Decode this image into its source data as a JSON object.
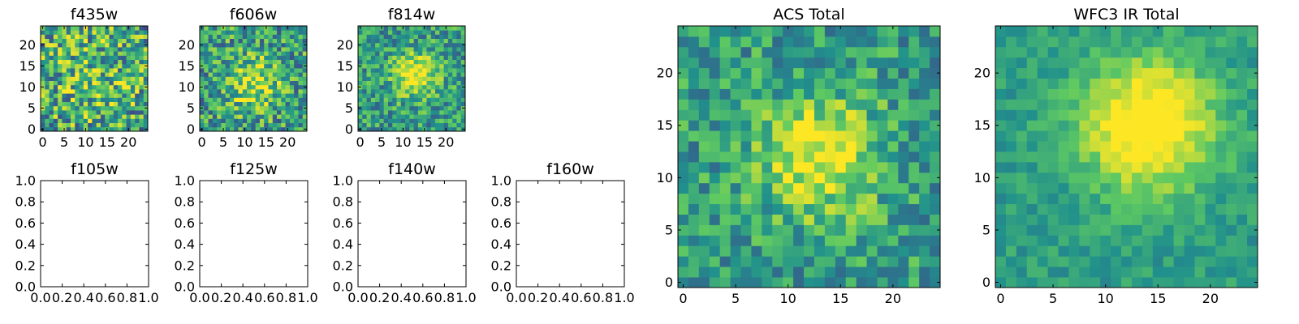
{
  "colormap": [
    "#440154",
    "#3b528b",
    "#21918c",
    "#5ec962",
    "#fde725"
  ],
  "chart_data": [
    {
      "type": "heatmap",
      "title": "f435w",
      "image_size": 25,
      "peak": [
        12,
        12
      ],
      "sigma": 9,
      "amplitude": 0.15,
      "noise": 0.42,
      "seed": 11,
      "xlim": [
        -0.5,
        24.5
      ],
      "ylim": [
        -0.5,
        24.5
      ],
      "xticks": [
        0,
        5,
        10,
        15,
        20
      ],
      "yticks": [
        0,
        5,
        10,
        15,
        20
      ],
      "xtick_labels": [
        "0",
        "5",
        "10",
        "15",
        "20"
      ],
      "ytick_labels": [
        "0",
        "5",
        "10",
        "15",
        "20"
      ]
    },
    {
      "type": "heatmap",
      "title": "f606w",
      "image_size": 25,
      "peak": [
        12,
        11
      ],
      "sigma": 4.5,
      "amplitude": 0.35,
      "noise": 0.35,
      "seed": 23,
      "xlim": [
        -0.5,
        24.5
      ],
      "ylim": [
        -0.5,
        24.5
      ],
      "xticks": [
        0,
        5,
        10,
        15,
        20
      ],
      "yticks": [
        0,
        5,
        10,
        15,
        20
      ],
      "xtick_labels": [
        "0",
        "5",
        "10",
        "15",
        "20"
      ],
      "ytick_labels": [
        "0",
        "5",
        "10",
        "15",
        "20"
      ]
    },
    {
      "type": "heatmap",
      "title": "f814w",
      "image_size": 25,
      "peak": [
        13,
        13
      ],
      "sigma": 3.5,
      "amplitude": 0.5,
      "noise": 0.28,
      "seed": 37,
      "xlim": [
        -0.5,
        24.5
      ],
      "ylim": [
        -0.5,
        24.5
      ],
      "xticks": [
        0,
        5,
        10,
        15,
        20
      ],
      "yticks": [
        0,
        5,
        10,
        15,
        20
      ],
      "xtick_labels": [
        "0",
        "5",
        "10",
        "15",
        "20"
      ],
      "ytick_labels": [
        "0",
        "5",
        "10",
        "15",
        "20"
      ]
    },
    {
      "type": "empty",
      "title": "f105w",
      "xlim": [
        0,
        1
      ],
      "ylim": [
        0,
        1
      ],
      "xtick_labels": [
        "0.0",
        "0.2",
        "0.4",
        "0.6",
        "0.8",
        "1.0"
      ],
      "ytick_labels": [
        "0.0",
        "0.2",
        "0.4",
        "0.6",
        "0.8",
        "1.0"
      ]
    },
    {
      "type": "empty",
      "title": "f125w",
      "xlim": [
        0,
        1
      ],
      "ylim": [
        0,
        1
      ],
      "xtick_labels": [
        "0.0",
        "0.2",
        "0.4",
        "0.6",
        "0.8",
        "1.0"
      ],
      "ytick_labels": [
        "0.0",
        "0.2",
        "0.4",
        "0.6",
        "0.8",
        "1.0"
      ]
    },
    {
      "type": "empty",
      "title": "f140w",
      "xlim": [
        0,
        1
      ],
      "ylim": [
        0,
        1
      ],
      "xtick_labels": [
        "0.0",
        "0.2",
        "0.4",
        "0.6",
        "0.8",
        "1.0"
      ],
      "ytick_labels": [
        "0.0",
        "0.2",
        "0.4",
        "0.6",
        "0.8",
        "1.0"
      ]
    },
    {
      "type": "empty",
      "title": "f160w",
      "xlim": [
        0,
        1
      ],
      "ylim": [
        0,
        1
      ],
      "xtick_labels": [
        "0.0",
        "0.2",
        "0.4",
        "0.6",
        "0.8",
        "1.0"
      ],
      "ytick_labels": [
        "0.0",
        "0.2",
        "0.4",
        "0.6",
        "0.8",
        "1.0"
      ]
    },
    {
      "type": "heatmap",
      "title": "ACS Total",
      "image_size": 25,
      "peak": [
        13,
        12
      ],
      "sigma": 4,
      "amplitude": 0.45,
      "noise": 0.25,
      "seed": 53,
      "xlim": [
        -0.5,
        24.5
      ],
      "ylim": [
        -0.5,
        24.5
      ],
      "xticks": [
        0,
        5,
        10,
        15,
        20
      ],
      "yticks": [
        0,
        5,
        10,
        15,
        20
      ],
      "xtick_labels": [
        "0",
        "5",
        "10",
        "15",
        "20"
      ],
      "ytick_labels": [
        "0",
        "5",
        "10",
        "15",
        "20"
      ]
    },
    {
      "type": "heatmap",
      "title": "WFC3 IR Total",
      "image_size": 25,
      "peak": [
        14,
        15
      ],
      "sigma": 4.5,
      "amplitude": 0.6,
      "noise": 0.12,
      "seed": 71,
      "xlim": [
        -0.5,
        24.5
      ],
      "ylim": [
        -0.5,
        24.5
      ],
      "xticks": [
        0,
        5,
        10,
        15,
        20
      ],
      "yticks": [
        0,
        5,
        10,
        15,
        20
      ],
      "xtick_labels": [
        "0",
        "5",
        "10",
        "15",
        "20"
      ],
      "ytick_labels": [
        "0",
        "5",
        "10",
        "15",
        "20"
      ]
    }
  ]
}
